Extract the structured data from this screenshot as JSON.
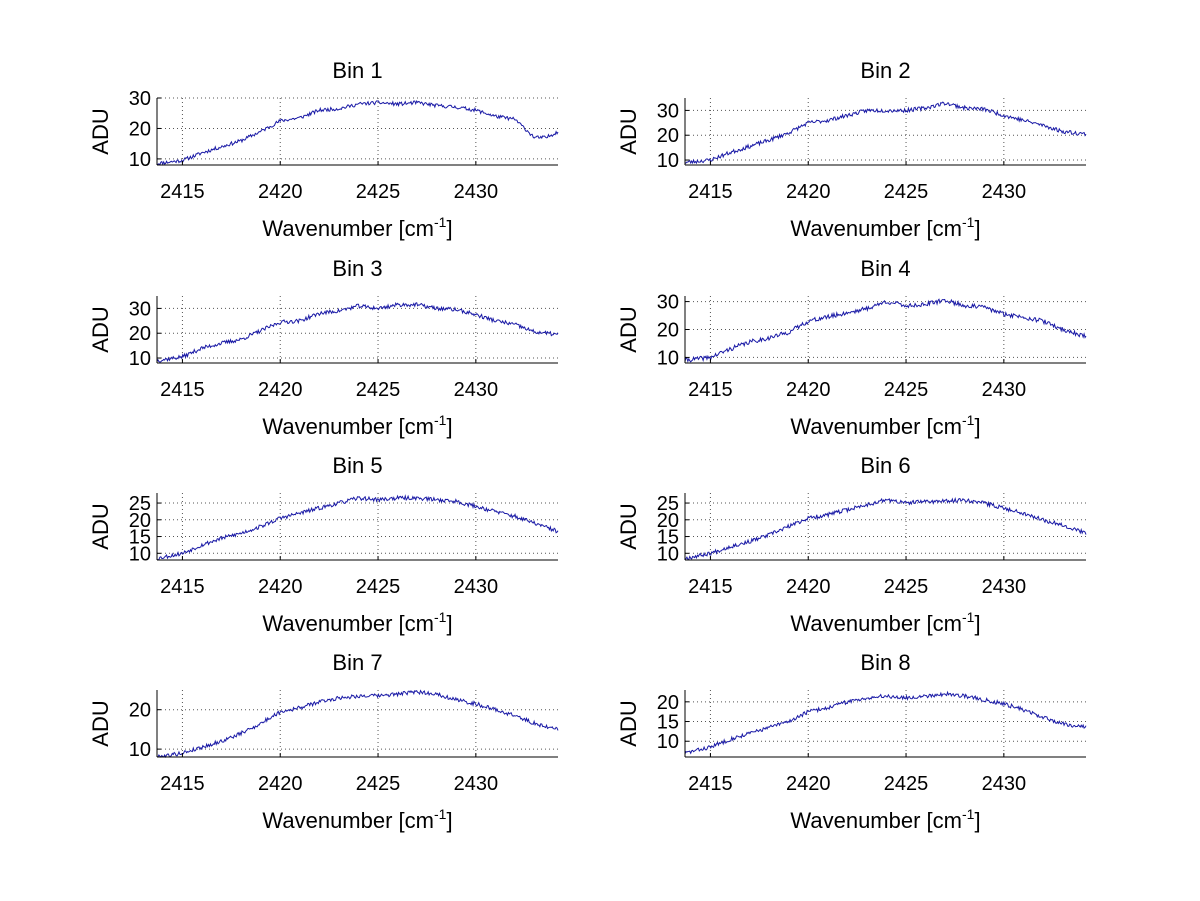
{
  "chart_data": [
    {
      "type": "line",
      "title": "Bin 1",
      "xlabel": "Wavenumber [cm",
      "xlabel_sup": "-1",
      "xlabel_close": "]",
      "ylabel": "ADU",
      "xlim": [
        2413.7,
        2434.2
      ],
      "ylim": [
        8,
        30
      ],
      "xticks": [
        2415,
        2420,
        2425,
        2430
      ],
      "yticks": [
        10,
        20,
        30
      ],
      "grid": true,
      "color": "#1a1aa6",
      "x": [
        2413.7,
        2415,
        2416,
        2417,
        2418,
        2419,
        2420,
        2421,
        2422,
        2423,
        2424,
        2425,
        2426,
        2427,
        2428,
        2429,
        2430,
        2431,
        2432,
        2433,
        2433.6,
        2434.2
      ],
      "values": [
        8.5,
        9.5,
        12,
        14,
        16,
        19,
        22.5,
        23.5,
        26,
        26.5,
        28,
        28.5,
        28,
        28.5,
        27.5,
        27,
        26,
        24,
        23,
        17,
        17,
        19
      ],
      "noise": 0.6,
      "seed": 11
    },
    {
      "type": "line",
      "title": "Bin 2",
      "xlabel": "Wavenumber [cm",
      "xlabel_sup": "-1",
      "xlabel_close": "]",
      "ylabel": "ADU",
      "xlim": [
        2413.7,
        2434.2
      ],
      "ylim": [
        8,
        35
      ],
      "xticks": [
        2415,
        2420,
        2425,
        2430
      ],
      "yticks": [
        10,
        20,
        30
      ],
      "grid": true,
      "color": "#1a1aa6",
      "x": [
        2413.7,
        2415,
        2416,
        2417,
        2418,
        2419,
        2420,
        2421,
        2422,
        2423,
        2424,
        2425,
        2426,
        2427,
        2428,
        2429,
        2430,
        2431,
        2432,
        2433,
        2434.2
      ],
      "values": [
        9,
        10,
        13,
        15.5,
        18,
        21,
        25,
        26,
        28,
        30,
        30,
        30,
        31,
        33,
        31,
        30.5,
        28,
        26,
        24,
        21.5,
        20.5
      ],
      "noise": 0.8,
      "seed": 23
    },
    {
      "type": "line",
      "title": "Bin 3",
      "xlabel": "Wavenumber [cm",
      "xlabel_sup": "-1",
      "xlabel_close": "]",
      "ylabel": "ADU",
      "xlim": [
        2413.7,
        2434.2
      ],
      "ylim": [
        8,
        35
      ],
      "xticks": [
        2415,
        2420,
        2425,
        2430
      ],
      "yticks": [
        10,
        20,
        30
      ],
      "grid": true,
      "color": "#1a1aa6",
      "x": [
        2413.7,
        2415,
        2416,
        2417,
        2418,
        2419,
        2420,
        2421,
        2422,
        2423,
        2424,
        2425,
        2426,
        2427,
        2428,
        2429,
        2430,
        2431,
        2432,
        2433,
        2434.2
      ],
      "values": [
        9,
        10.5,
        14,
        16,
        17.5,
        21,
        24.5,
        25,
        28,
        29,
        31,
        30,
        31.5,
        31.5,
        30,
        29.5,
        27.5,
        25,
        23.5,
        20.5,
        19.5
      ],
      "noise": 0.8,
      "seed": 37
    },
    {
      "type": "line",
      "title": "Bin 4",
      "xlabel": "Wavenumber [cm",
      "xlabel_sup": "-1",
      "xlabel_close": "]",
      "ylabel": "ADU",
      "xlim": [
        2413.7,
        2434.2
      ],
      "ylim": [
        8,
        32
      ],
      "xticks": [
        2415,
        2420,
        2425,
        2430
      ],
      "yticks": [
        10,
        20,
        30
      ],
      "grid": true,
      "color": "#1a1aa6",
      "x": [
        2413.7,
        2415,
        2416,
        2417,
        2418,
        2419,
        2420,
        2421,
        2422,
        2423,
        2424,
        2425,
        2426,
        2427,
        2428,
        2429,
        2430,
        2431,
        2432,
        2433,
        2434.2
      ],
      "values": [
        9,
        10,
        13,
        15.5,
        17,
        19,
        23,
        24.5,
        26,
        27.5,
        30,
        28.5,
        29,
        30.5,
        28.5,
        28,
        25.5,
        24.5,
        23,
        20,
        17.5
      ],
      "noise": 0.8,
      "seed": 41
    },
    {
      "type": "line",
      "title": "Bin 5",
      "xlabel": "Wavenumber [cm",
      "xlabel_sup": "-1",
      "xlabel_close": "]",
      "ylabel": "ADU",
      "xlim": [
        2413.7,
        2434.2
      ],
      "ylim": [
        8,
        28
      ],
      "xticks": [
        2415,
        2420,
        2425,
        2430
      ],
      "yticks": [
        10,
        15,
        20,
        25
      ],
      "grid": true,
      "color": "#1a1aa6",
      "x": [
        2413.7,
        2415,
        2416,
        2417,
        2418,
        2419,
        2420,
        2421,
        2422,
        2423,
        2424,
        2425,
        2426,
        2427,
        2428,
        2429,
        2430,
        2431,
        2432,
        2433,
        2434.2
      ],
      "values": [
        8.5,
        10,
        12.5,
        14.5,
        16,
        18,
        20.5,
        22,
        23.5,
        25,
        26.5,
        26,
        26.5,
        26.5,
        26,
        25.5,
        24,
        22.5,
        21,
        19,
        16.5
      ],
      "noise": 0.6,
      "seed": 53
    },
    {
      "type": "line",
      "title": "Bin 6",
      "xlabel": "Wavenumber [cm",
      "xlabel_sup": "-1",
      "xlabel_close": "]",
      "ylabel": "ADU",
      "xlim": [
        2413.7,
        2434.2
      ],
      "ylim": [
        8,
        28
      ],
      "xticks": [
        2415,
        2420,
        2425,
        2430
      ],
      "yticks": [
        10,
        15,
        20,
        25
      ],
      "grid": true,
      "color": "#1a1aa6",
      "x": [
        2413.7,
        2415,
        2416,
        2417,
        2418,
        2419,
        2420,
        2421,
        2422,
        2423,
        2424,
        2425,
        2426,
        2427,
        2428,
        2429,
        2430,
        2431,
        2432,
        2433,
        2434.2
      ],
      "values": [
        8.5,
        10,
        12,
        13.5,
        15.5,
        18,
        20.5,
        21.5,
        23,
        24.5,
        26,
        25,
        25.5,
        25.5,
        26,
        25,
        23.5,
        22,
        20,
        18.5,
        16
      ],
      "noise": 0.6,
      "seed": 67
    },
    {
      "type": "line",
      "title": "Bin 7",
      "xlabel": "Wavenumber [cm",
      "xlabel_sup": "-1",
      "xlabel_close": "]",
      "ylabel": "ADU",
      "xlim": [
        2413.7,
        2434.2
      ],
      "ylim": [
        8,
        25
      ],
      "xticks": [
        2415,
        2420,
        2425,
        2430
      ],
      "yticks": [
        10,
        20
      ],
      "grid": true,
      "color": "#1a1aa6",
      "x": [
        2413.7,
        2415,
        2416,
        2417,
        2418,
        2419,
        2420,
        2421,
        2422,
        2423,
        2424,
        2425,
        2426,
        2427,
        2428,
        2429,
        2430,
        2431,
        2432,
        2433,
        2434.2
      ],
      "values": [
        8,
        9,
        10.5,
        12,
        14,
        16.5,
        19.5,
        20.5,
        22,
        23,
        23.5,
        23.5,
        24,
        24.5,
        24,
        22.5,
        21.5,
        20,
        18.5,
        16.5,
        15
      ],
      "noise": 0.5,
      "seed": 79
    },
    {
      "type": "line",
      "title": "Bin 8",
      "xlabel": "Wavenumber [cm",
      "xlabel_sup": "-1",
      "xlabel_close": "]",
      "ylabel": "ADU",
      "xlim": [
        2413.7,
        2434.2
      ],
      "ylim": [
        6,
        23
      ],
      "xticks": [
        2415,
        2420,
        2425,
        2430
      ],
      "yticks": [
        10,
        15,
        20
      ],
      "grid": true,
      "color": "#1a1aa6",
      "x": [
        2413.7,
        2415,
        2416,
        2417,
        2418,
        2419,
        2420,
        2421,
        2422,
        2423,
        2424,
        2425,
        2426,
        2427,
        2428,
        2429,
        2430,
        2431,
        2432,
        2433,
        2434.2
      ],
      "values": [
        7,
        8.5,
        10.5,
        12,
        13.5,
        15,
        17.5,
        18.5,
        20,
        21,
        21.5,
        21,
        21.5,
        22,
        21.5,
        20.5,
        19.5,
        18,
        16,
        14.5,
        13.5
      ],
      "noise": 0.5,
      "seed": 83
    }
  ]
}
